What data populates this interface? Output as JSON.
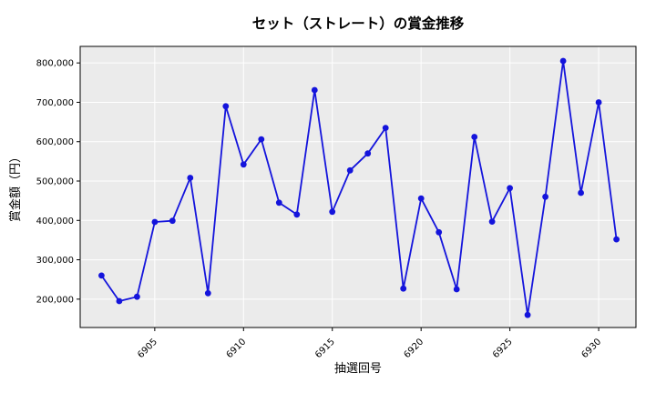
{
  "chart_data": {
    "type": "line",
    "title": "セット（ストレート）の賞金推移",
    "xlabel": "抽選回号",
    "ylabel": "賞金額（円）",
    "series": [
      {
        "name": "賞金額",
        "x": [
          6902,
          6903,
          6904,
          6905,
          6906,
          6907,
          6908,
          6909,
          6910,
          6911,
          6912,
          6913,
          6914,
          6915,
          6916,
          6917,
          6918,
          6919,
          6920,
          6921,
          6922,
          6923,
          6924,
          6925,
          6926,
          6927,
          6928,
          6929,
          6930,
          6931
        ],
        "values": [
          260000,
          195000,
          206000,
          396000,
          399000,
          508000,
          215000,
          690000,
          542000,
          606000,
          445000,
          415000,
          731000,
          422000,
          527000,
          570000,
          635000,
          227000,
          456000,
          370000,
          225000,
          612000,
          397000,
          482000,
          160000,
          460000,
          805000,
          470000,
          700000,
          352000
        ]
      }
    ],
    "xticks": [
      6905,
      6910,
      6915,
      6920,
      6925,
      6930
    ],
    "yticks": [
      200000,
      300000,
      400000,
      500000,
      600000,
      700000,
      800000
    ],
    "xlim": [
      6900.8,
      6932.1
    ],
    "ylim": [
      128000,
      842000
    ],
    "grid": true,
    "legend_position": "none",
    "line_color": "#1414dc",
    "marker": "circle",
    "marker_color": "#1414dc",
    "plot_bg_color": "#ebebeb",
    "grid_color": "#ffffff",
    "spine_color": "#000000",
    "figure_bg_color": "#ffffff",
    "x_tick_rotation_deg": 45
  }
}
